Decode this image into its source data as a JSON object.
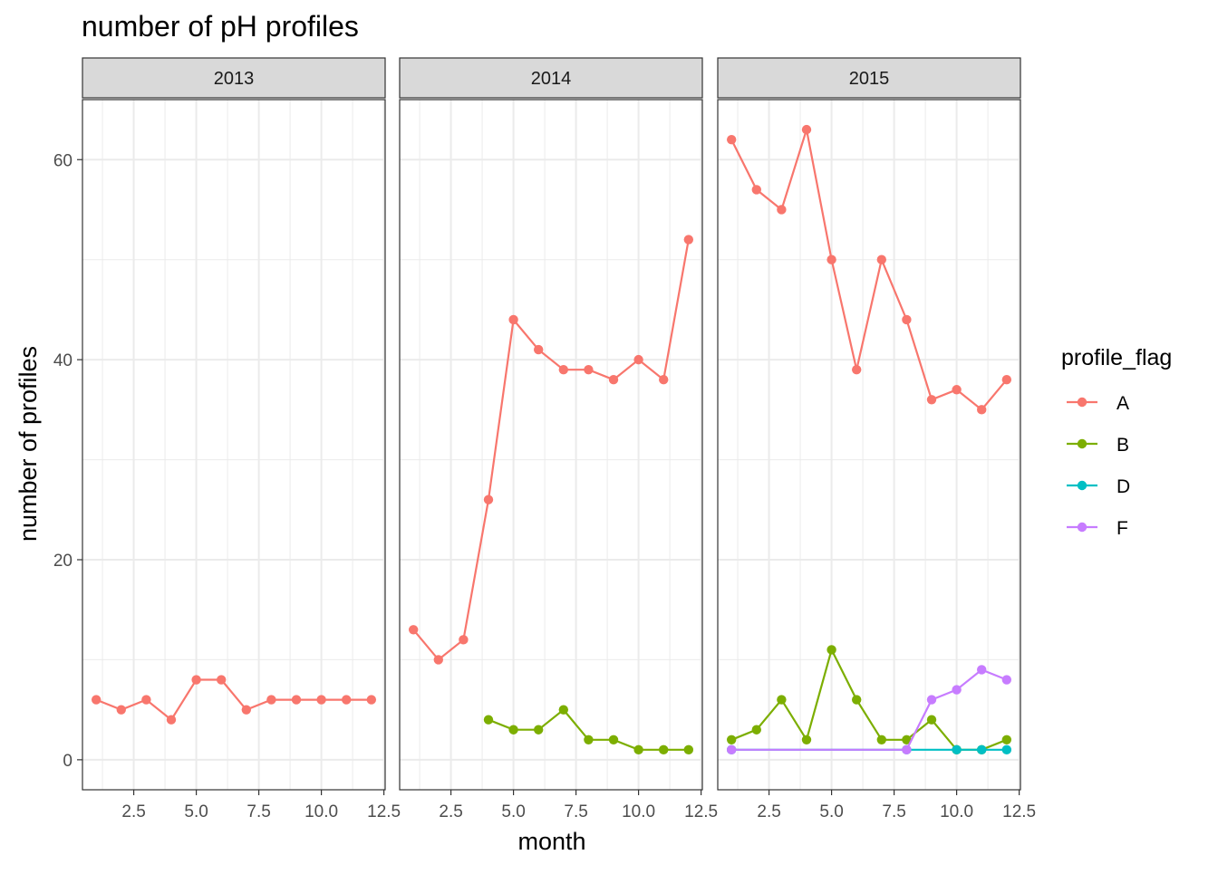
{
  "chart_data": {
    "type": "line",
    "title": "number of pH profiles",
    "xlabel": "month",
    "ylabel": "number of profiles",
    "xlim": [
      0.45,
      12.55
    ],
    "ylim": [
      -3,
      66
    ],
    "x_ticks": [
      2.5,
      5.0,
      7.5,
      10.0,
      12.5
    ],
    "x_tick_labels": [
      "2.5",
      "5.0",
      "7.5",
      "10.0",
      "12.5"
    ],
    "y_ticks": [
      0,
      20,
      40,
      60
    ],
    "y_tick_labels": [
      "0",
      "20",
      "40",
      "60"
    ],
    "grid": true,
    "facets": [
      "2013",
      "2014",
      "2015"
    ],
    "legend": {
      "title": "profile_flag",
      "position": "right",
      "entries": [
        {
          "label": "A",
          "color": "#F8766D"
        },
        {
          "label": "B",
          "color": "#7CAE00"
        },
        {
          "label": "D",
          "color": "#00BFC4"
        },
        {
          "label": "F",
          "color": "#C77CFF"
        }
      ]
    },
    "series": [
      {
        "facet": "2013",
        "flag": "A",
        "color": "#F8766D",
        "x": [
          1,
          2,
          3,
          4,
          5,
          6,
          7,
          8,
          9,
          10,
          11,
          12
        ],
        "y": [
          6,
          5,
          6,
          4,
          8,
          8,
          5,
          6,
          6,
          6,
          6,
          6
        ]
      },
      {
        "facet": "2014",
        "flag": "A",
        "color": "#F8766D",
        "x": [
          1,
          2,
          3,
          4,
          5,
          6,
          7,
          8,
          9,
          10,
          11,
          12
        ],
        "y": [
          13,
          10,
          12,
          26,
          44,
          41,
          39,
          39,
          38,
          40,
          38,
          52
        ]
      },
      {
        "facet": "2014",
        "flag": "B",
        "color": "#7CAE00",
        "x": [
          4,
          5,
          6,
          7,
          8,
          9,
          10,
          11,
          12
        ],
        "y": [
          4,
          3,
          3,
          5,
          2,
          2,
          1,
          1,
          1
        ]
      },
      {
        "facet": "2015",
        "flag": "A",
        "color": "#F8766D",
        "x": [
          1,
          2,
          3,
          4,
          5,
          6,
          7,
          8,
          9,
          10,
          11,
          12
        ],
        "y": [
          62,
          57,
          55,
          63,
          50,
          39,
          50,
          44,
          36,
          37,
          35,
          38
        ]
      },
      {
        "facet": "2015",
        "flag": "B",
        "color": "#7CAE00",
        "x": [
          1,
          2,
          3,
          4,
          5,
          6,
          7,
          8,
          9,
          10,
          11,
          12
        ],
        "y": [
          2,
          3,
          6,
          2,
          11,
          6,
          2,
          2,
          4,
          1,
          1,
          2
        ]
      },
      {
        "facet": "2015",
        "flag": "D",
        "color": "#00BFC4",
        "x": [
          1,
          8,
          10,
          11,
          12
        ],
        "y": [
          1,
          1,
          1,
          1,
          1
        ]
      },
      {
        "facet": "2015",
        "flag": "F",
        "color": "#C77CFF",
        "x": [
          1,
          8,
          9,
          10,
          11,
          12
        ],
        "y": [
          1,
          1,
          6,
          7,
          9,
          8
        ]
      }
    ]
  }
}
